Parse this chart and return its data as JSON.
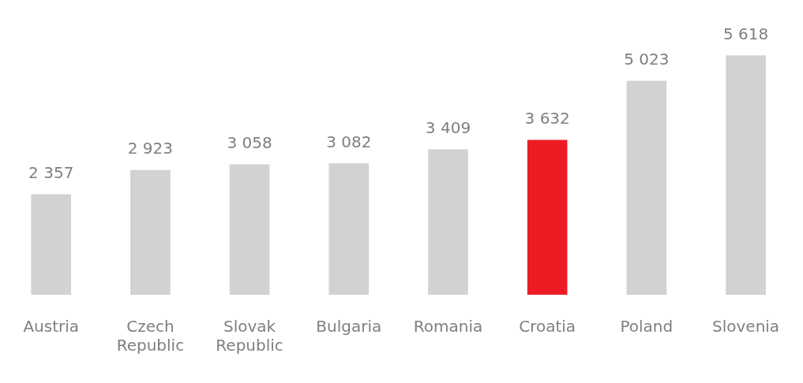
{
  "chart_data": {
    "type": "bar",
    "categories": [
      "Austria",
      "Czech Republic",
      "Slovak Republic",
      "Bulgaria",
      "Romania",
      "Croatia",
      "Poland",
      "Slovenia"
    ],
    "values": [
      2357,
      2923,
      3058,
      3082,
      3409,
      3632,
      5023,
      5618
    ],
    "value_labels": [
      "2 357",
      "2 923",
      "3 058",
      "3 082",
      "3 409",
      "3 632",
      "5 023",
      "5 618"
    ],
    "colors": [
      "#d1d2d4",
      "#d1d2d4",
      "#d1d2d4",
      "#d1d2d4",
      "#d1d2d4",
      "#ed1c24",
      "#d1d2d4",
      "#d1d2d4"
    ],
    "grid": false,
    "legend": false
  }
}
